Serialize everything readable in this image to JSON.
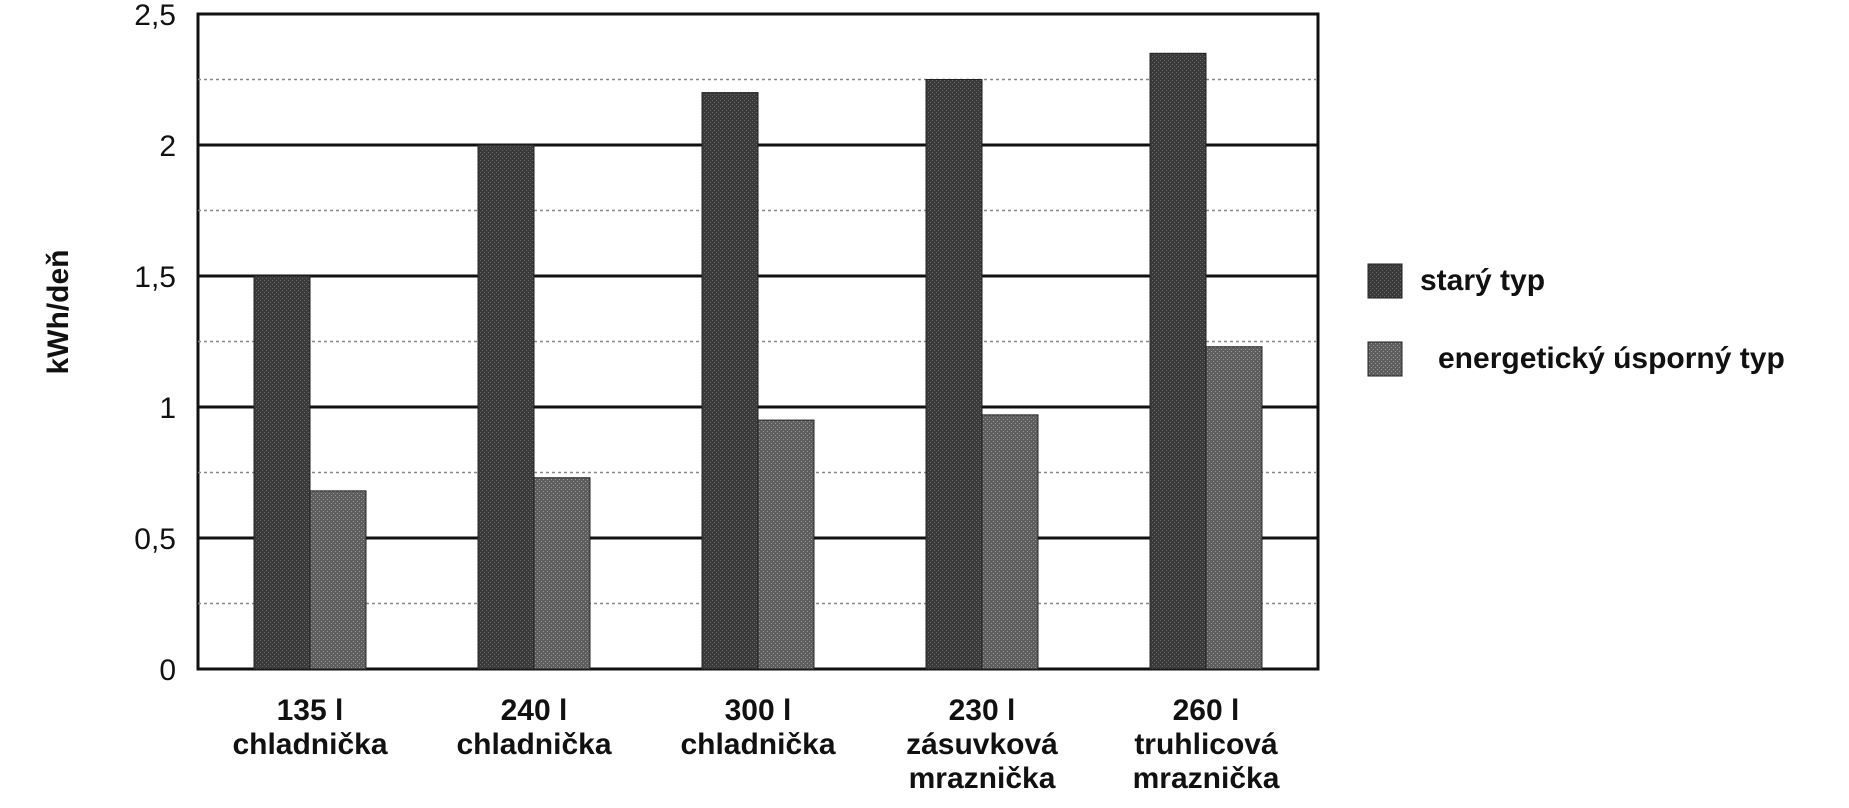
{
  "chart_data": {
    "type": "bar",
    "ylabel": "kWh/deň",
    "ylim": [
      0,
      2.5
    ],
    "yticks": [
      "0",
      "0,5",
      "1",
      "1,5",
      "2",
      "2,5"
    ],
    "categories": [
      [
        "135 l",
        "chladnička"
      ],
      [
        "240 l",
        "chladnička"
      ],
      [
        "300 l",
        "chladnička"
      ],
      [
        "230 l",
        "zásuvková",
        "mraznička"
      ],
      [
        "260 l",
        "truhlicová",
        "mraznička"
      ]
    ],
    "series": [
      {
        "name": "starý typ",
        "values": [
          1.5,
          2.0,
          2.2,
          2.25,
          2.35
        ],
        "color": "#3a3a3a"
      },
      {
        "name": "energetický úsporný typ",
        "values": [
          0.68,
          0.73,
          0.95,
          0.97,
          1.23
        ],
        "color": "#6e6e6e"
      }
    ],
    "grid": true,
    "legend_position": "right"
  }
}
